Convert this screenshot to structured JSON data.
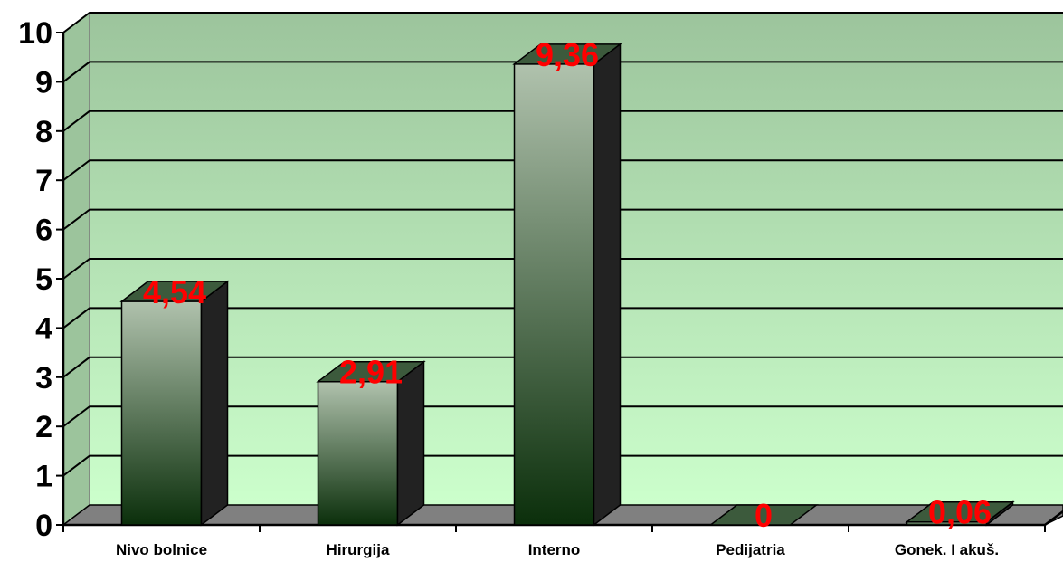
{
  "chart_data": {
    "type": "bar",
    "categories": [
      "Nivo bolnice",
      "Hirurgija",
      "Interno",
      "Pedijatria",
      "Gonek. I akuš."
    ],
    "values": [
      4.54,
      2.91,
      9.36,
      0,
      0.06
    ],
    "data_labels": [
      "4,54",
      "2,91",
      "9,36",
      "0",
      "0,06"
    ],
    "y_ticks": [
      "0",
      "1",
      "2",
      "3",
      "4",
      "5",
      "6",
      "7",
      "8",
      "9",
      "10"
    ],
    "ylim": [
      0,
      10
    ],
    "grid": true,
    "legend": "none",
    "three_d": true,
    "colors": {
      "wall_top": "#9cc49c",
      "wall_bottom": "#ccffcc",
      "floor": "#808080",
      "bar_light": "#b0c2ad",
      "bar_dark": "#0b2f0b",
      "bar_side": "#222222",
      "label": "#ff0000"
    }
  }
}
